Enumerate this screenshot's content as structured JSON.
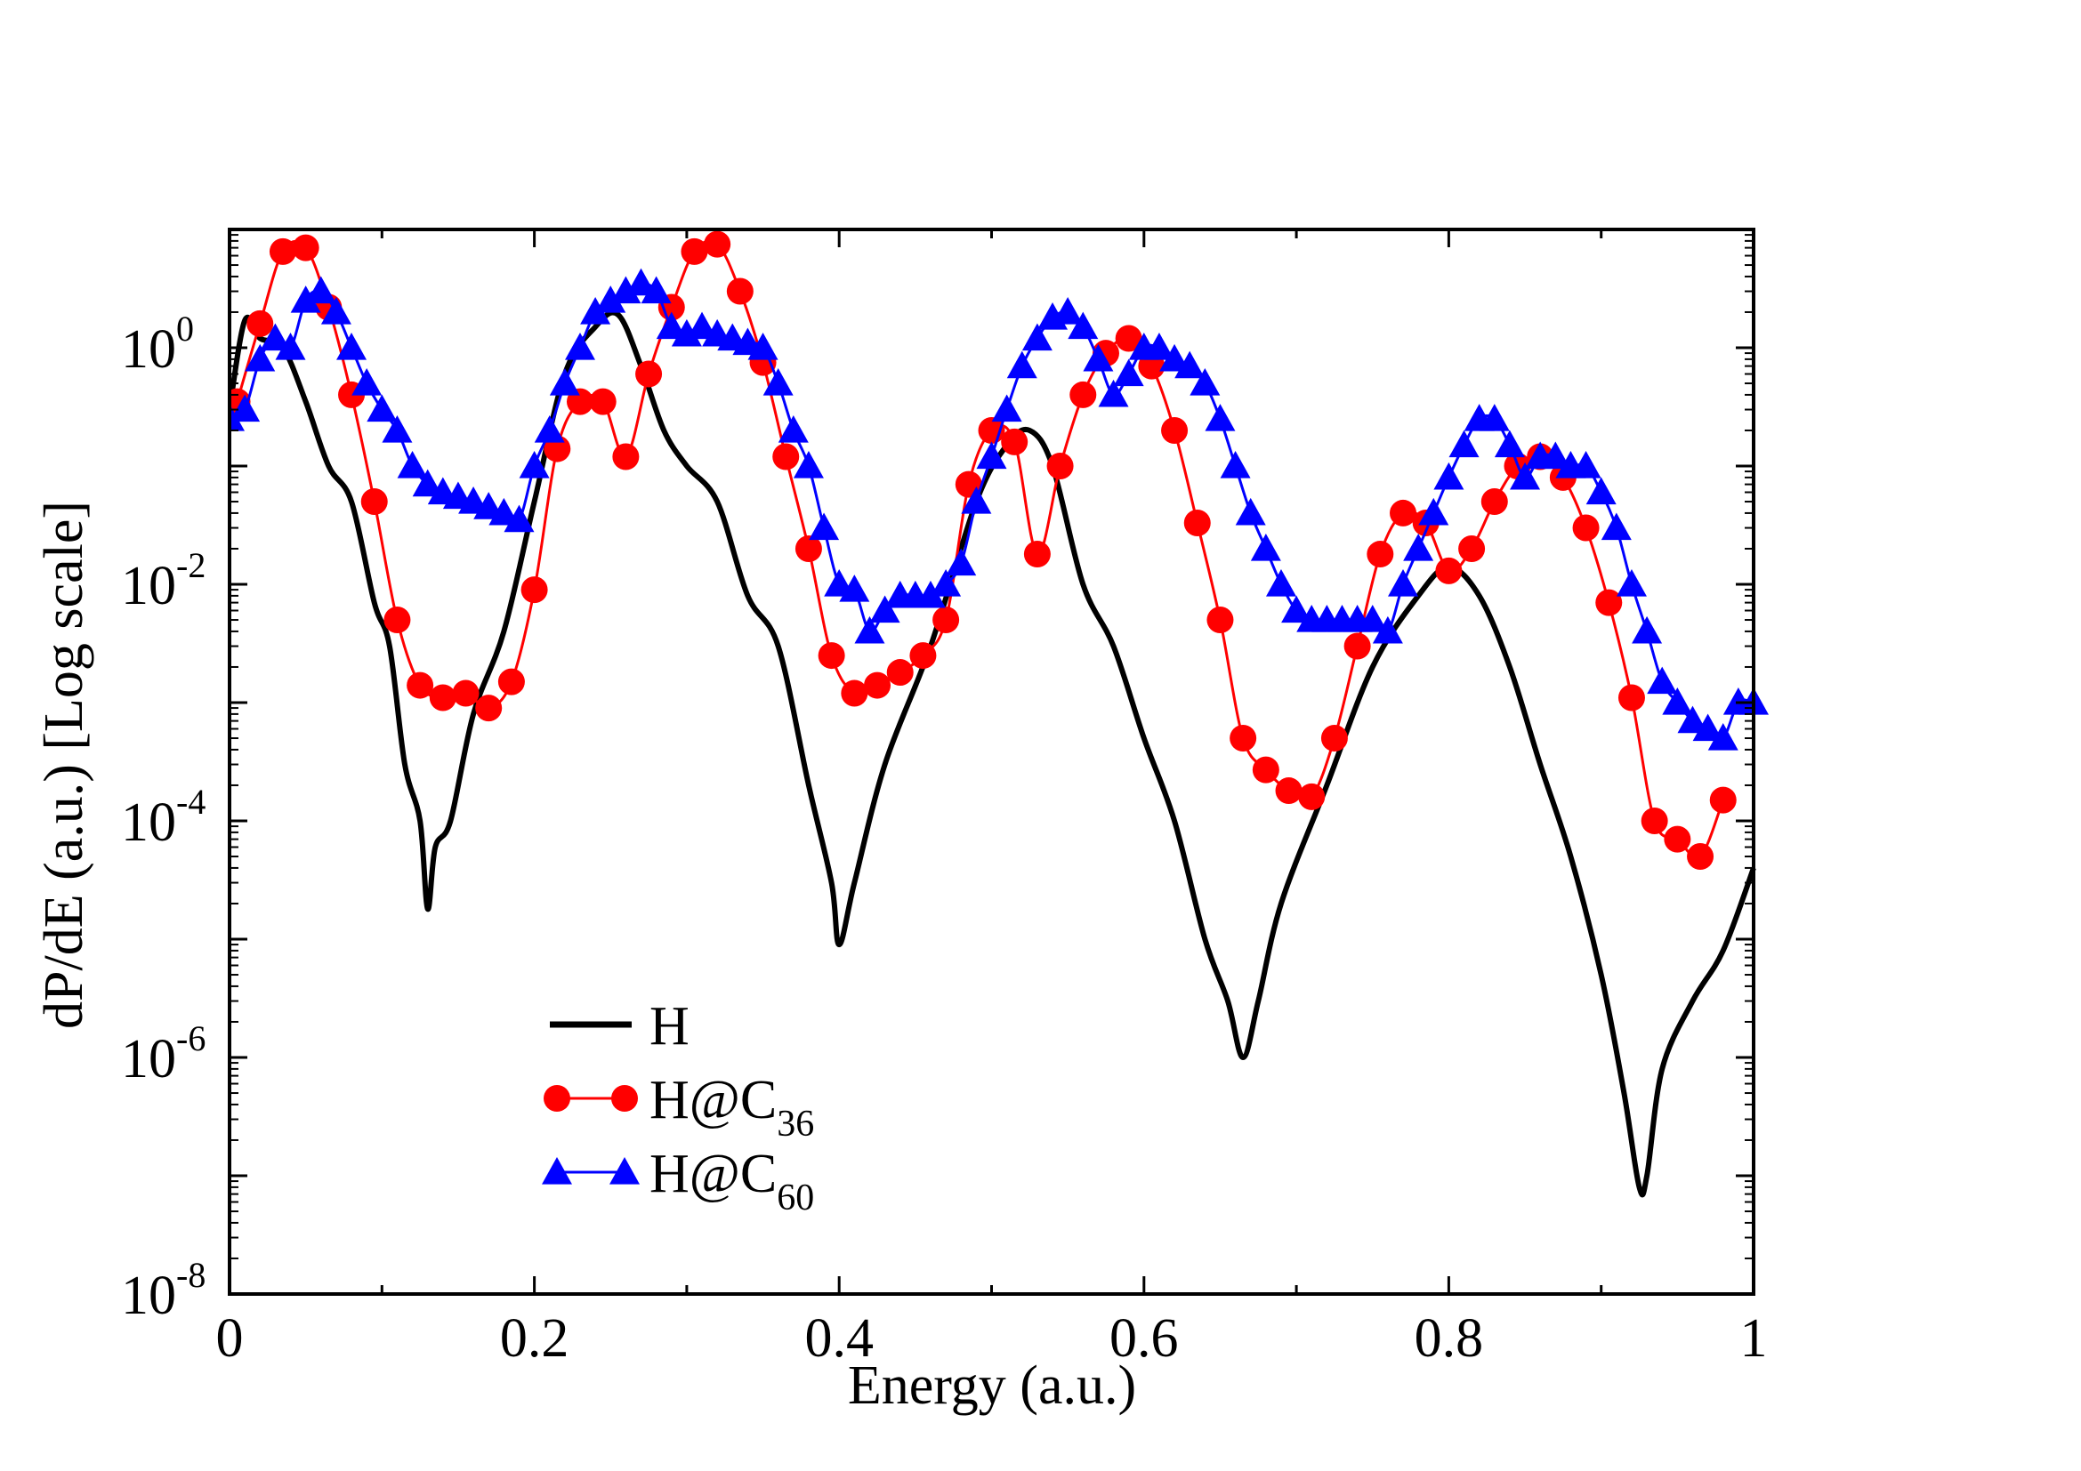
{
  "chart_data": {
    "type": "line",
    "xlabel": "Energy (a.u.)",
    "ylabel": "dP/dE (a.u.) [Log scale]",
    "xlim": [
      0,
      1
    ],
    "ylim_exponent": [
      -8,
      1
    ],
    "yscale": "log",
    "grid": false,
    "legend_position": "lower-left",
    "x_ticks": [
      {
        "value": 0,
        "label": "0"
      },
      {
        "value": 0.2,
        "label": "0.2"
      },
      {
        "value": 0.4,
        "label": "0.4"
      },
      {
        "value": 0.6,
        "label": "0.6"
      },
      {
        "value": 0.8,
        "label": "0.8"
      },
      {
        "value": 1,
        "label": "1"
      }
    ],
    "y_ticks": [
      {
        "exp": 0,
        "base": "10",
        "sup": "0"
      },
      {
        "exp": -2,
        "base": "10",
        "sup": "-2"
      },
      {
        "exp": -4,
        "base": "10",
        "sup": "-4"
      },
      {
        "exp": -6,
        "base": "10",
        "sup": "-6"
      },
      {
        "exp": -8,
        "base": "10",
        "sup": "-8"
      }
    ],
    "series": [
      {
        "name": "H",
        "legend_main": "H",
        "legend_sub": "",
        "color": "#000000",
        "marker": "none",
        "line_width": 6,
        "x": [
          0,
          0.01,
          0.02,
          0.035,
          0.05,
          0.065,
          0.08,
          0.095,
          0.105,
          0.115,
          0.125,
          0.13,
          0.135,
          0.145,
          0.16,
          0.18,
          0.2,
          0.22,
          0.24,
          0.255,
          0.27,
          0.285,
          0.3,
          0.32,
          0.34,
          0.36,
          0.38,
          0.395,
          0.4,
          0.41,
          0.43,
          0.46,
          0.49,
          0.51,
          0.525,
          0.54,
          0.56,
          0.58,
          0.6,
          0.62,
          0.64,
          0.655,
          0.665,
          0.675,
          0.69,
          0.72,
          0.75,
          0.78,
          0.8,
          0.82,
          0.84,
          0.86,
          0.88,
          0.9,
          0.915,
          0.925,
          0.93,
          0.94,
          0.96,
          0.98,
          1.0
        ],
        "y": [
          0.3,
          1.7,
          1.2,
          1.0,
          0.35,
          0.1,
          0.05,
          0.007,
          0.003,
          0.0003,
          0.0001,
          1.8e-05,
          6e-05,
          0.0001,
          0.0008,
          0.004,
          0.05,
          0.6,
          1.5,
          1.9,
          0.7,
          0.2,
          0.1,
          0.05,
          0.008,
          0.003,
          0.0002,
          3e-05,
          9e-06,
          3e-05,
          0.0003,
          0.003,
          0.05,
          0.15,
          0.2,
          0.1,
          0.01,
          0.003,
          0.0005,
          0.0001,
          1e-05,
          3e-06,
          1e-06,
          3e-06,
          2e-05,
          0.0002,
          0.002,
          0.008,
          0.014,
          0.008,
          0.002,
          0.0003,
          5e-05,
          5e-06,
          5e-07,
          8e-08,
          1e-07,
          8e-07,
          3e-06,
          8e-06,
          4e-05
        ]
      },
      {
        "name": "H@C36",
        "legend_main": "H@C",
        "legend_sub": "36",
        "color": "#ff0000",
        "marker": "circle",
        "line_width": 3,
        "x": [
          0.005,
          0.02,
          0.035,
          0.05,
          0.065,
          0.08,
          0.095,
          0.11,
          0.125,
          0.14,
          0.155,
          0.17,
          0.185,
          0.2,
          0.215,
          0.23,
          0.245,
          0.26,
          0.275,
          0.29,
          0.305,
          0.32,
          0.335,
          0.35,
          0.365,
          0.38,
          0.395,
          0.41,
          0.425,
          0.44,
          0.455,
          0.47,
          0.485,
          0.5,
          0.515,
          0.53,
          0.545,
          0.56,
          0.575,
          0.59,
          0.605,
          0.62,
          0.635,
          0.65,
          0.665,
          0.68,
          0.695,
          0.71,
          0.725,
          0.74,
          0.755,
          0.77,
          0.785,
          0.8,
          0.815,
          0.83,
          0.845,
          0.86,
          0.875,
          0.89,
          0.905,
          0.92,
          0.935,
          0.95,
          0.965,
          0.98
        ],
        "y": [
          0.35,
          1.6,
          6.5,
          7.0,
          2.2,
          0.4,
          0.05,
          0.005,
          0.0014,
          0.0011,
          0.0012,
          0.0009,
          0.0015,
          0.009,
          0.14,
          0.35,
          0.35,
          0.12,
          0.6,
          2.2,
          6.5,
          7.5,
          3.0,
          0.75,
          0.12,
          0.02,
          0.0025,
          0.0012,
          0.0014,
          0.0018,
          0.0025,
          0.005,
          0.07,
          0.2,
          0.16,
          0.018,
          0.1,
          0.4,
          0.9,
          1.2,
          0.7,
          0.2,
          0.033,
          0.005,
          0.0005,
          0.00027,
          0.00018,
          0.00016,
          0.0005,
          0.003,
          0.018,
          0.04,
          0.033,
          0.013,
          0.02,
          0.05,
          0.1,
          0.12,
          0.08,
          0.03,
          0.007,
          0.0011,
          0.0001,
          7e-05,
          5e-05,
          0.00015
        ]
      },
      {
        "name": "H@C60",
        "legend_main": "H@C",
        "legend_sub": "60",
        "color": "#0000ff",
        "marker": "triangle",
        "line_width": 3,
        "x": [
          0.0,
          0.01,
          0.02,
          0.03,
          0.04,
          0.05,
          0.06,
          0.07,
          0.08,
          0.09,
          0.1,
          0.11,
          0.12,
          0.13,
          0.14,
          0.15,
          0.16,
          0.17,
          0.18,
          0.19,
          0.2,
          0.21,
          0.22,
          0.23,
          0.24,
          0.25,
          0.26,
          0.27,
          0.28,
          0.29,
          0.3,
          0.31,
          0.32,
          0.33,
          0.34,
          0.35,
          0.36,
          0.37,
          0.38,
          0.39,
          0.4,
          0.41,
          0.42,
          0.43,
          0.44,
          0.45,
          0.46,
          0.47,
          0.48,
          0.49,
          0.5,
          0.51,
          0.52,
          0.53,
          0.54,
          0.55,
          0.56,
          0.57,
          0.58,
          0.59,
          0.6,
          0.61,
          0.62,
          0.63,
          0.64,
          0.65,
          0.66,
          0.67,
          0.68,
          0.69,
          0.7,
          0.71,
          0.72,
          0.73,
          0.74,
          0.75,
          0.76,
          0.77,
          0.78,
          0.79,
          0.8,
          0.81,
          0.82,
          0.83,
          0.84,
          0.85,
          0.86,
          0.87,
          0.88,
          0.89,
          0.9,
          0.91,
          0.92,
          0.93,
          0.94,
          0.95,
          0.96,
          0.97,
          0.98,
          0.99,
          1.0
        ],
        "y": [
          0.25,
          0.3,
          0.8,
          1.2,
          1.0,
          2.5,
          3.0,
          2.0,
          1.0,
          0.5,
          0.3,
          0.2,
          0.1,
          0.07,
          0.06,
          0.055,
          0.05,
          0.045,
          0.04,
          0.035,
          0.1,
          0.2,
          0.5,
          1.0,
          2.0,
          2.5,
          3.0,
          3.5,
          3.0,
          1.5,
          1.3,
          1.5,
          1.3,
          1.2,
          1.1,
          1.0,
          0.5,
          0.2,
          0.1,
          0.03,
          0.01,
          0.009,
          0.004,
          0.006,
          0.008,
          0.008,
          0.008,
          0.01,
          0.015,
          0.05,
          0.12,
          0.3,
          0.7,
          1.2,
          1.8,
          2.0,
          1.5,
          0.8,
          0.4,
          0.6,
          1.0,
          1.0,
          0.8,
          0.7,
          0.5,
          0.25,
          0.1,
          0.04,
          0.02,
          0.01,
          0.006,
          0.005,
          0.005,
          0.005,
          0.005,
          0.005,
          0.004,
          0.01,
          0.02,
          0.04,
          0.08,
          0.15,
          0.25,
          0.25,
          0.15,
          0.08,
          0.12,
          0.12,
          0.1,
          0.1,
          0.06,
          0.03,
          0.01,
          0.004,
          0.0015,
          0.001,
          0.0007,
          0.0006,
          0.0005,
          0.001,
          0.001
        ]
      }
    ]
  }
}
